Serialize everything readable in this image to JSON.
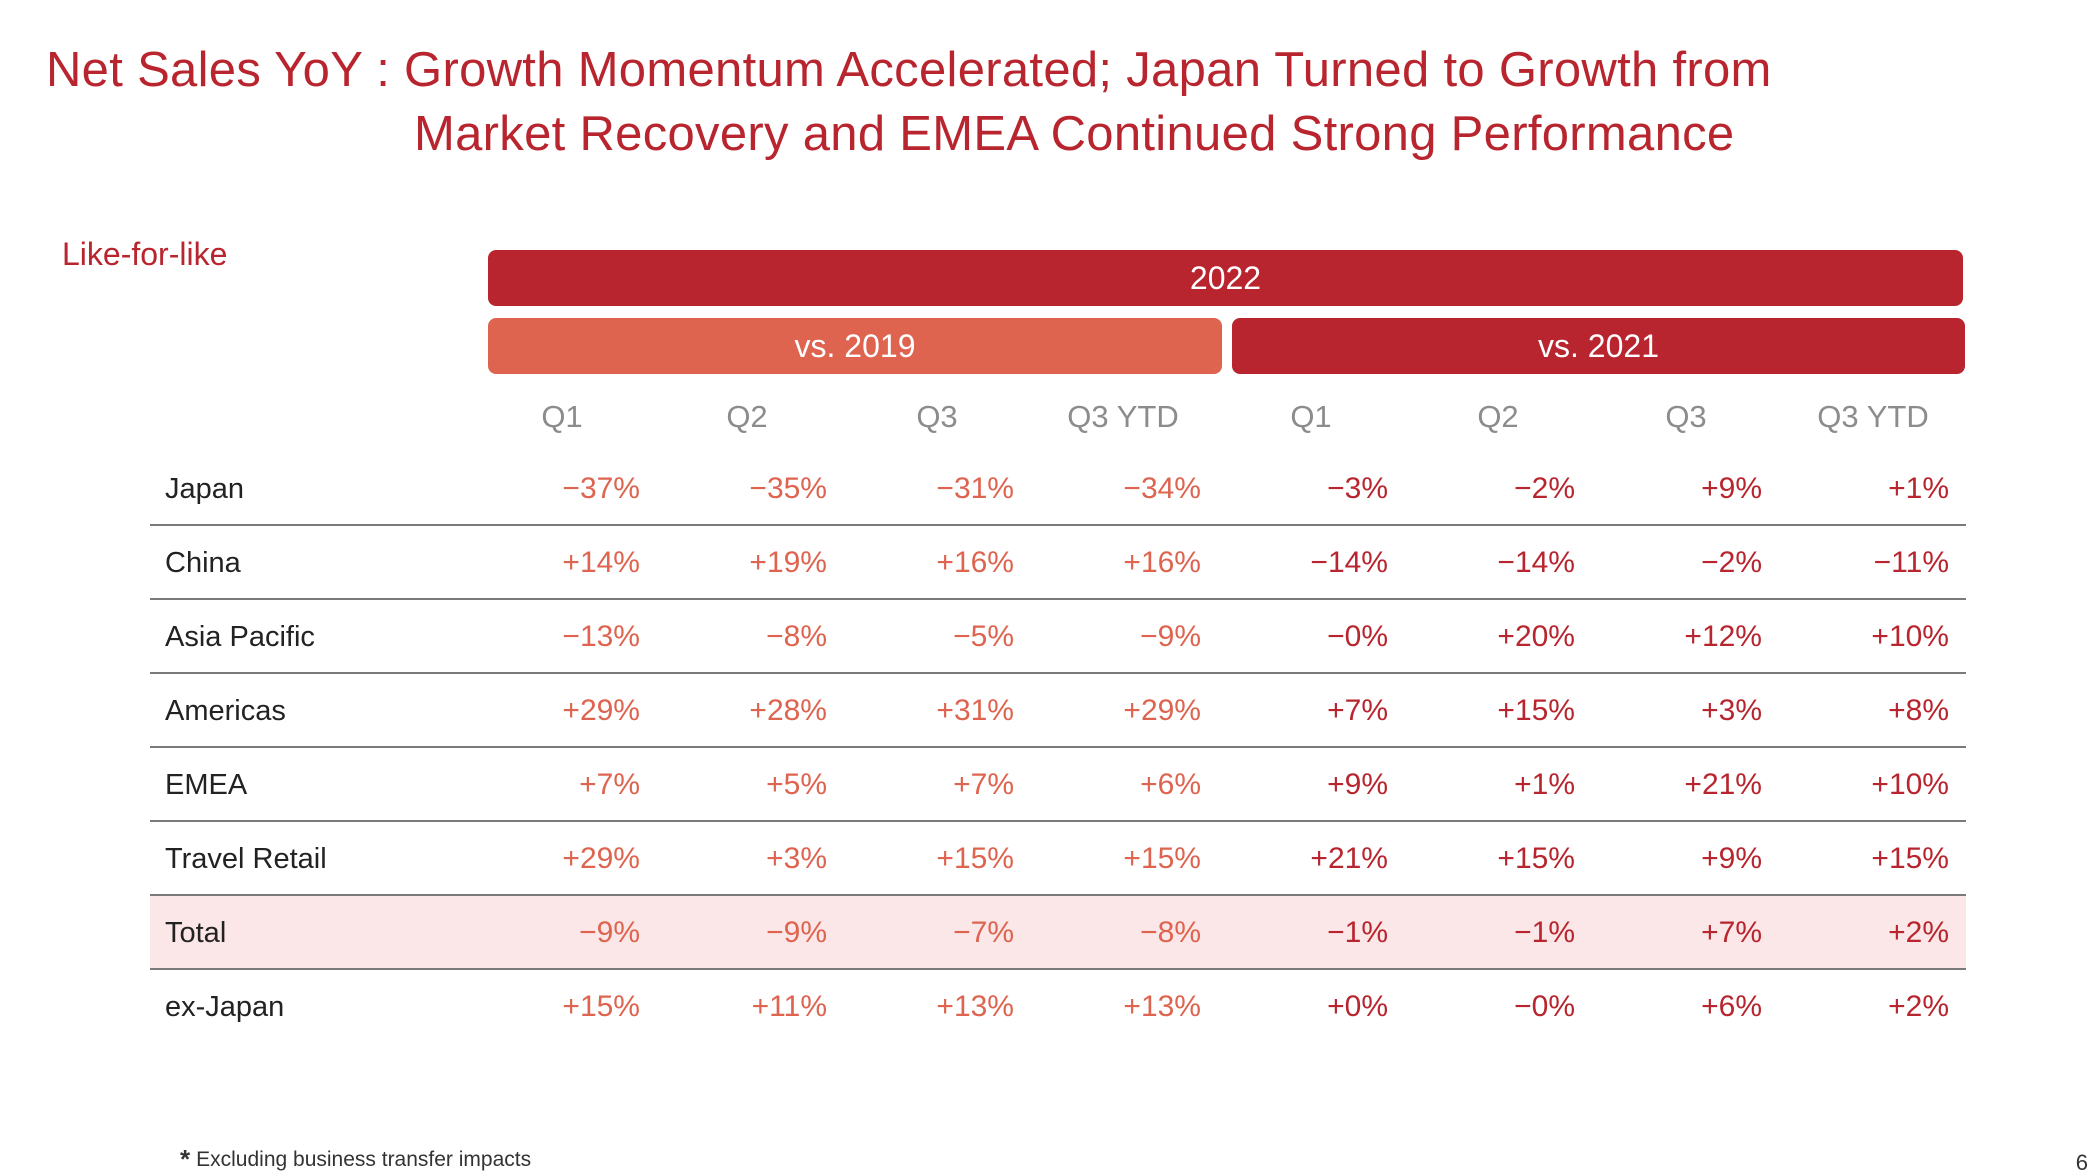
{
  "title": {
    "line1": "Net Sales YoY : Growth Momentum Accelerated; Japan Turned to Growth from",
    "line2": "Market Recovery and EMEA Continued Strong Performance"
  },
  "like_for_like": "Like-for-like",
  "header": {
    "year": "2022",
    "group_vs_2019": "vs. 2019",
    "group_vs_2021": "vs. 2021",
    "columns": [
      "Q1",
      "Q2",
      "Q3",
      "Q3 YTD",
      "Q1",
      "Q2",
      "Q3",
      "Q3 YTD"
    ]
  },
  "rows": [
    {
      "label": "Japan",
      "values": [
        "−37%",
        "−35%",
        "−31%",
        "−34%",
        "−3%",
        "−2%",
        "+9%",
        "+1%"
      ]
    },
    {
      "label": "China",
      "values": [
        "+14%",
        "+19%",
        "+16%",
        "+16%",
        "−14%",
        "−14%",
        "−2%",
        "−11%"
      ]
    },
    {
      "label": "Asia Pacific",
      "values": [
        "−13%",
        "−8%",
        "−5%",
        "−9%",
        "−0%",
        "+20%",
        "+12%",
        "+10%"
      ]
    },
    {
      "label": "Americas",
      "values": [
        "+29%",
        "+28%",
        "+31%",
        "+29%",
        "+7%",
        "+15%",
        "+3%",
        "+8%"
      ]
    },
    {
      "label": "EMEA",
      "values": [
        "+7%",
        "+5%",
        "+7%",
        "+6%",
        "+9%",
        "+1%",
        "+21%",
        "+10%"
      ]
    },
    {
      "label": "Travel Retail",
      "values": [
        "+29%",
        "+3%",
        "+15%",
        "+15%",
        "+21%",
        "+15%",
        "+9%",
        "+15%"
      ]
    },
    {
      "label": "Total",
      "values": [
        "−9%",
        "−9%",
        "−7%",
        "−8%",
        "−1%",
        "−1%",
        "+7%",
        "+2%"
      ]
    },
    {
      "label": "ex-Japan",
      "values": [
        "+15%",
        "+11%",
        "+13%",
        "+13%",
        "+0%",
        "−0%",
        "+6%",
        "+2%"
      ]
    }
  ],
  "footnote": {
    "marker": "*",
    "text": "Excluding business transfer impacts"
  },
  "page_number": "6",
  "colors": {
    "primary_red": "#b8252e",
    "coral": "#de6450",
    "total_row_bg": "#fbe7e7"
  }
}
